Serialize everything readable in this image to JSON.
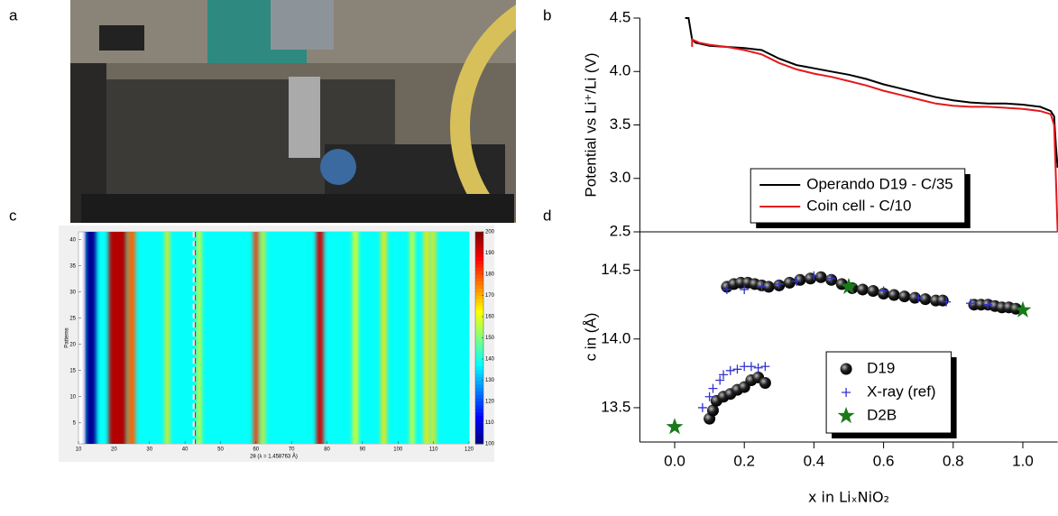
{
  "photo": {
    "panel_label": "a"
  },
  "chart_data": [
    {
      "type": "line",
      "panel_label": "b",
      "y_label": "Potential vs Li⁺/Li (V)",
      "xlim": [
        -0.1,
        1.1
      ],
      "ylim": [
        2.5,
        4.5
      ],
      "yticks": [
        2.5,
        {
          "value": 3,
          "label": "3.0"
        },
        3.5,
        {
          "value": 4,
          "label": "4.0"
        },
        4.5
      ],
      "legend": "lower center",
      "series": [
        {
          "name": "Operando D19 - C/35",
          "color": "#000000",
          "x": [
            0.03,
            0.04,
            0.05,
            0.06,
            0.1,
            0.15,
            0.2,
            0.25,
            0.3,
            0.35,
            0.4,
            0.45,
            0.5,
            0.55,
            0.6,
            0.65,
            0.7,
            0.75,
            0.8,
            0.85,
            0.9,
            0.95,
            1.0,
            1.05,
            1.08,
            1.09,
            1.095,
            1.1
          ],
          "values": [
            4.5,
            4.5,
            4.3,
            4.27,
            4.24,
            4.23,
            4.22,
            4.2,
            4.12,
            4.06,
            4.03,
            4.0,
            3.97,
            3.93,
            3.88,
            3.84,
            3.8,
            3.76,
            3.73,
            3.71,
            3.7,
            3.7,
            3.69,
            3.67,
            3.63,
            3.58,
            3.3,
            3.1
          ]
        },
        {
          "name": "Coin cell - C/10",
          "color": "#e3191c",
          "x": [
            0.05,
            0.05,
            0.07,
            0.1,
            0.15,
            0.2,
            0.25,
            0.3,
            0.35,
            0.4,
            0.45,
            0.5,
            0.55,
            0.6,
            0.65,
            0.7,
            0.75,
            0.8,
            0.85,
            0.9,
            0.95,
            1.0,
            1.05,
            1.08,
            1.09,
            1.095,
            1.1
          ],
          "values": [
            4.23,
            4.3,
            4.27,
            4.25,
            4.23,
            4.2,
            4.16,
            4.08,
            4.02,
            3.98,
            3.95,
            3.91,
            3.87,
            3.82,
            3.78,
            3.74,
            3.7,
            3.68,
            3.67,
            3.67,
            3.66,
            3.65,
            3.63,
            3.6,
            3.5,
            3.0,
            2.5
          ]
        }
      ]
    },
    {
      "type": "scatter",
      "panel_label": "d",
      "y_label": "c in (Å)",
      "x_label": "x in LiₓNiO₂",
      "xlim": [
        -0.1,
        1.1
      ],
      "ylim": [
        13.25,
        14.78
      ],
      "xticks": [
        {
          "value": 0,
          "label": "0.0"
        },
        0.2,
        0.4,
        0.6,
        0.8,
        {
          "value": 1,
          "label": "1.0"
        }
      ],
      "yticks": [
        13.5,
        {
          "value": 14,
          "label": "14.0"
        },
        14.5
      ],
      "legend": "lower right",
      "series": [
        {
          "name": "D19",
          "color": "#000000",
          "marker": "sphere",
          "x": [
            0.1,
            0.11,
            0.12,
            0.14,
            0.16,
            0.18,
            0.2,
            0.22,
            0.24,
            0.26,
            0.15,
            0.17,
            0.19,
            0.21,
            0.23,
            0.25,
            0.27,
            0.3,
            0.33,
            0.36,
            0.39,
            0.42,
            0.45,
            0.48,
            0.51,
            0.54,
            0.57,
            0.6,
            0.63,
            0.66,
            0.69,
            0.72,
            0.75,
            0.77,
            0.86,
            0.88,
            0.9,
            0.92,
            0.94,
            0.96,
            0.98
          ],
          "values": [
            13.42,
            13.48,
            13.55,
            13.58,
            13.6,
            13.63,
            13.65,
            13.7,
            13.72,
            13.68,
            14.38,
            14.4,
            14.41,
            14.41,
            14.4,
            14.39,
            14.38,
            14.39,
            14.41,
            14.43,
            14.44,
            14.45,
            14.43,
            14.4,
            14.37,
            14.36,
            14.35,
            14.33,
            14.32,
            14.31,
            14.3,
            14.29,
            14.28,
            14.28,
            14.25,
            14.25,
            14.25,
            14.24,
            14.23,
            14.23,
            14.22
          ]
        },
        {
          "name": "X-ray (ref)",
          "color": "#3333cc",
          "marker": "plus",
          "x": [
            0.08,
            0.1,
            0.11,
            0.13,
            0.14,
            0.16,
            0.18,
            0.2,
            0.22,
            0.24,
            0.26,
            0.15,
            0.2,
            0.25,
            0.3,
            0.35,
            0.4,
            0.45,
            0.5,
            0.6,
            0.7,
            0.78,
            0.85,
            0.9,
            1.0
          ],
          "values": [
            13.5,
            13.58,
            13.64,
            13.7,
            13.74,
            13.77,
            13.78,
            13.8,
            13.8,
            13.79,
            13.8,
            14.36,
            14.36,
            14.38,
            14.4,
            14.42,
            14.46,
            14.44,
            14.4,
            14.35,
            14.3,
            14.27,
            14.26,
            14.25,
            14.22
          ]
        },
        {
          "name": "D2B",
          "color": "#1a7a1a",
          "marker": "star",
          "x": [
            0,
            0.5,
            1
          ],
          "values": [
            13.36,
            14.38,
            14.21
          ]
        }
      ]
    },
    {
      "type": "heatmap",
      "panel_label": "c",
      "x_label": "2θ (λ = 1.458763 Å)",
      "y_label": "Patterns",
      "xlim": [
        10,
        120
      ],
      "xticks": [
        10,
        20,
        30,
        40,
        50,
        60,
        70,
        80,
        90,
        100,
        110,
        120
      ],
      "ylim": [
        1,
        41.5
      ],
      "yticks": [
        5,
        10,
        15,
        20,
        25,
        30,
        35,
        40
      ],
      "colorbar_lim": [
        100,
        200
      ],
      "colorbar_ticks": [
        100,
        110,
        120,
        130,
        140,
        150,
        160,
        170,
        180,
        190,
        200
      ],
      "background": 138,
      "data_start": 12,
      "dashed_line_x": 42.5,
      "peaks": {
        "x": [
          13.5,
          21,
          25,
          35,
          44,
          60,
          62,
          78,
          88,
          96,
          104,
          108,
          110
        ],
        "widths": [
          3,
          5,
          2,
          1.2,
          1.2,
          1.5,
          1,
          2,
          1.5,
          1.5,
          1.2,
          1.5,
          1.2
        ],
        "values": [
          102,
          195,
          178,
          165,
          160,
          182,
          165,
          192,
          160,
          165,
          160,
          165,
          165
        ]
      }
    }
  ]
}
